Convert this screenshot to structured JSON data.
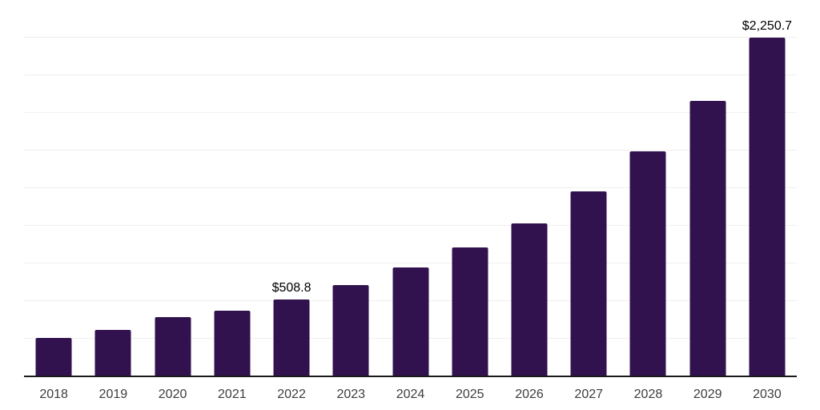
{
  "chart_data": {
    "type": "bar",
    "title": "",
    "xlabel": "",
    "ylabel": "",
    "categories": [
      "2018",
      "2019",
      "2020",
      "2021",
      "2022",
      "2023",
      "2024",
      "2025",
      "2026",
      "2027",
      "2028",
      "2029",
      "2030"
    ],
    "values": [
      255,
      307,
      392,
      436,
      508.8,
      605,
      722,
      856,
      1016,
      1229,
      1495,
      1831,
      2250.7
    ],
    "ylim": [
      0,
      2500
    ],
    "grid_interval": 250,
    "grid": true,
    "legend": false,
    "annotations": [
      {
        "category": "2022",
        "text": "$508.8"
      },
      {
        "category": "2030",
        "text": "$2,250.7"
      }
    ],
    "colors": {
      "bar": "#32124E",
      "axis": "#1a1a1a",
      "grid": "#efefef",
      "tick_label": "#3d3d3d",
      "annotation": "#000000",
      "background": "#ffffff"
    }
  }
}
